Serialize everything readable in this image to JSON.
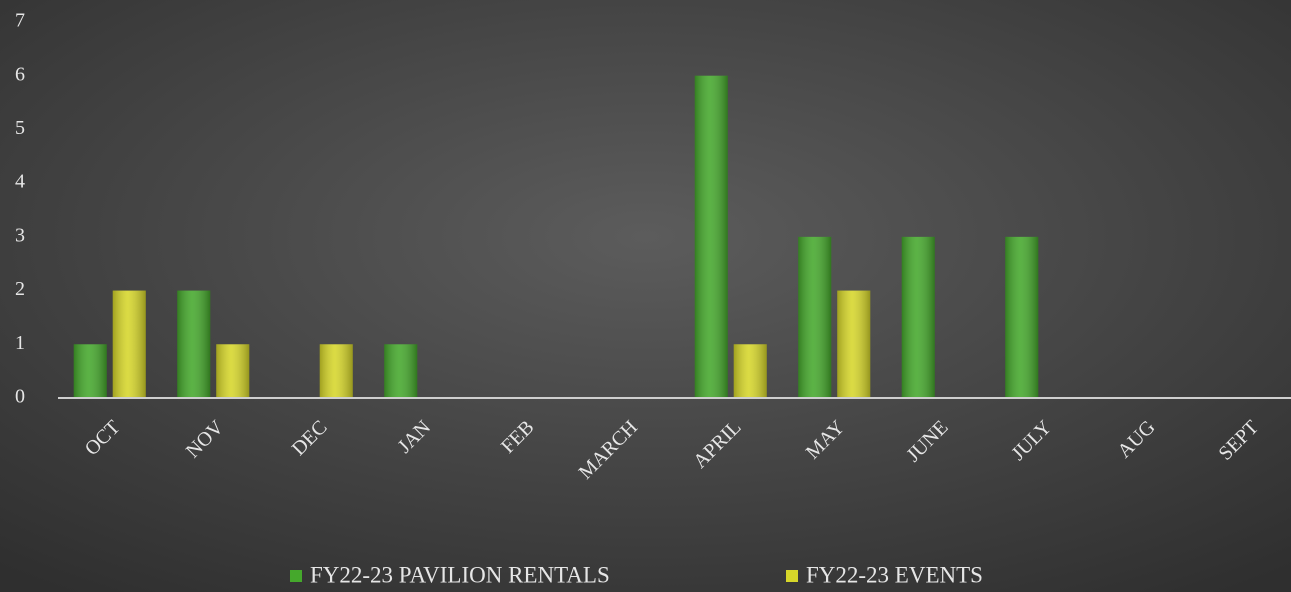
{
  "chart_data": {
    "type": "bar",
    "categories": [
      "OCT",
      "NOV",
      "DEC",
      "JAN",
      "FEB",
      "MARCH",
      "APRIL",
      "MAY",
      "JUNE",
      "JULY",
      "AUG",
      "SEPT"
    ],
    "series": [
      {
        "name": "FY22-23 PAVILION RENTALS",
        "color": "#45a82c",
        "values": [
          1,
          2,
          0,
          1,
          0,
          0,
          6,
          3,
          3,
          3,
          0,
          0
        ]
      },
      {
        "name": "FY22-23 EVENTS",
        "color": "#d6d62a",
        "values": [
          2,
          1,
          1,
          0,
          0,
          0,
          1,
          2,
          0,
          0,
          0,
          0
        ]
      }
    ],
    "ylim": [
      0,
      7
    ],
    "yticks": [
      0,
      1,
      2,
      3,
      4,
      5,
      6,
      7
    ],
    "grid": false,
    "legend": "bottom"
  }
}
